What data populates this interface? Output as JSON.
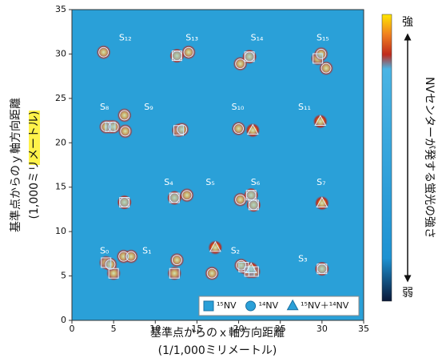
{
  "chart_data": {
    "type": "scatter",
    "xlabel": "基準点からのｘ軸方向距離",
    "xlabel_unit": "(1/1,000ミリメートル)",
    "ylabel": "基準点からのｙ軸方向距離",
    "ylabel_unit": "(1,000ミリメートル)",
    "xlim": [
      0,
      35
    ],
    "ylim": [
      0,
      35
    ],
    "xticks": [
      0,
      5,
      10,
      15,
      20,
      25,
      30,
      35
    ],
    "yticks": [
      0,
      5,
      10,
      15,
      20,
      25,
      30,
      35
    ],
    "legend": "lower right",
    "series": [
      {
        "name": "¹⁵NV",
        "marker": "square",
        "color": "#7cc6ee",
        "x": [
          4.1,
          5.0,
          12.3,
          20.6,
          21.3,
          21.8,
          30.0,
          6.3,
          12.3,
          21.5,
          21.8,
          4.6,
          12.8,
          12.6,
          21.3,
          29.5
        ],
        "values": [
          6.5,
          5.3,
          5.3,
          6.0,
          5.5,
          5.5,
          5.8,
          13.3,
          13.8,
          14.1,
          13.0,
          21.8,
          21.4,
          29.8,
          29.7,
          29.5
        ]
      },
      {
        "name": "¹⁴NV",
        "marker": "circle",
        "color": "#7cc6ee",
        "x": [
          4.6,
          6.2,
          7.1,
          12.6,
          16.8,
          20.3,
          30.0,
          6.3,
          12.3,
          13.8,
          20.2,
          21.5,
          21.8,
          4.1,
          5.0,
          6.3,
          6.4,
          13.2,
          20.0,
          3.8,
          12.6,
          14.0,
          20.2,
          21.3,
          29.9,
          30.5
        ],
        "values": [
          6.3,
          7.2,
          7.2,
          6.8,
          5.3,
          6.2,
          5.8,
          13.3,
          13.8,
          14.1,
          13.6,
          14.1,
          13.0,
          21.8,
          21.8,
          23.1,
          21.3,
          21.5,
          21.6,
          30.2,
          29.8,
          30.2,
          28.9,
          29.7,
          30.0,
          28.4
        ]
      },
      {
        "name": "¹⁵NV＋¹⁴NV",
        "marker": "triangle",
        "color": "#7cc6ee",
        "x": [
          17.2,
          21.5,
          30.0,
          21.7,
          29.8
        ],
        "values": [
          8.2,
          5.8,
          13.2,
          21.4,
          22.4
        ]
      }
    ],
    "annotations": [
      {
        "text": "S₀",
        "x": 3.9,
        "y": 7.8
      },
      {
        "text": "S₁",
        "x": 9.0,
        "y": 7.8
      },
      {
        "text": "S₂",
        "x": 19.6,
        "y": 7.8
      },
      {
        "text": "S₃",
        "x": 27.7,
        "y": 6.9
      },
      {
        "text": "S₄",
        "x": 11.6,
        "y": 15.5
      },
      {
        "text": "S₅",
        "x": 16.6,
        "y": 15.5
      },
      {
        "text": "S₆",
        "x": 22.0,
        "y": 15.5
      },
      {
        "text": "S₇",
        "x": 29.9,
        "y": 15.5
      },
      {
        "text": "S₈",
        "x": 3.9,
        "y": 24.0
      },
      {
        "text": "S₉",
        "x": 9.2,
        "y": 24.0
      },
      {
        "text": "S₁₀",
        "x": 19.9,
        "y": 24.0
      },
      {
        "text": "S₁₁",
        "x": 27.9,
        "y": 24.0
      },
      {
        "text": "S₁₂",
        "x": 6.4,
        "y": 31.8
      },
      {
        "text": "S₁₃",
        "x": 14.4,
        "y": 31.8
      },
      {
        "text": "S₁₄",
        "x": 22.2,
        "y": 31.8
      },
      {
        "text": "S₁₅",
        "x": 30.1,
        "y": 31.8
      }
    ],
    "colorbar": {
      "high": "強",
      "low": "弱",
      "label": "NVセンターが発する蛍光の強さ"
    }
  }
}
